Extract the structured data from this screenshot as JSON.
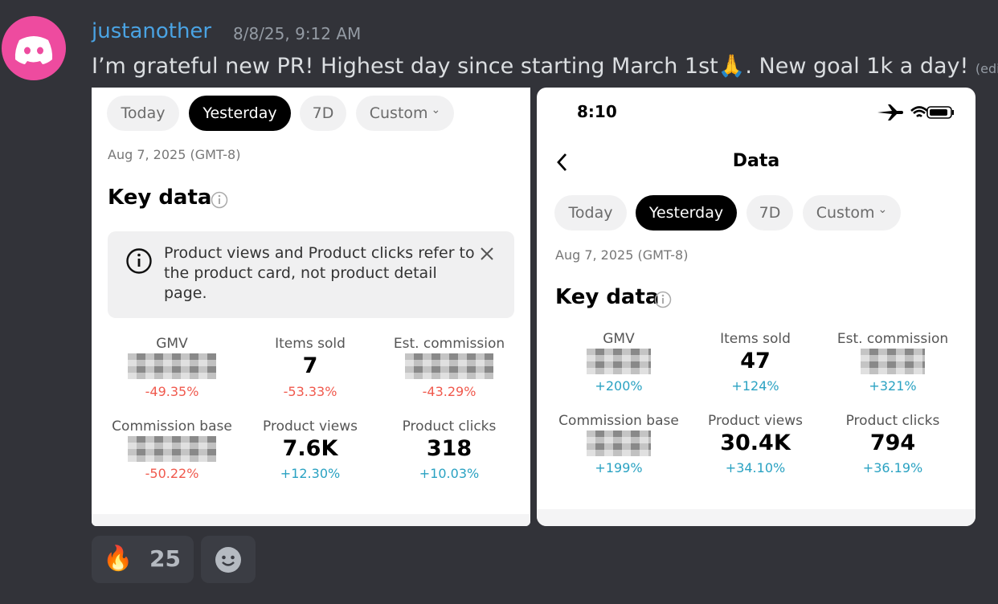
{
  "message": {
    "username": "justanother",
    "timestamp": "8/8/25, 9:12 AM",
    "text": "I’m grateful new PR! Highest day since starting March 1st🙏.  New goal 1k a day!",
    "edited": "(edited)"
  },
  "screenshots": [
    {
      "tabs": [
        "Today",
        "Yesterday",
        "7D",
        "Custom"
      ],
      "selected_tab": 1,
      "date": "Aug 7, 2025 (GMT-8)",
      "section_title": "Key data",
      "notice": "Product views and Product clicks refer to the product card, not product detail page.",
      "metrics": [
        {
          "label": "GMV",
          "change": "-49.35%"
        },
        {
          "label": "Items sold",
          "value": "7",
          "change": "-53.33%"
        },
        {
          "label": "Est. commission",
          "change": "-43.29%"
        },
        {
          "label": "Commission base",
          "change": "-50.22%"
        },
        {
          "label": "Product views",
          "value": "7.6K",
          "change": "+12.30%"
        },
        {
          "label": "Product clicks",
          "value": "318",
          "change": "+10.03%"
        }
      ]
    },
    {
      "status_time": "8:10",
      "header_title": "Data",
      "tabs": [
        "Today",
        "Yesterday",
        "7D",
        "Custom"
      ],
      "selected_tab": 1,
      "date": "Aug 7, 2025 (GMT-8)",
      "section_title": "Key data",
      "metrics": [
        {
          "label": "GMV",
          "change": "+200%"
        },
        {
          "label": "Items sold",
          "value": "47",
          "change": "+124%"
        },
        {
          "label": "Est. commission",
          "change": "+321%"
        },
        {
          "label": "Commission base",
          "change": "+199%"
        },
        {
          "label": "Product views",
          "value": "30.4K",
          "change": "+34.10%"
        },
        {
          "label": "Product clicks",
          "value": "794",
          "change": "+36.19%"
        }
      ]
    }
  ],
  "reactions": [
    {
      "emoji": "🔥",
      "count": 25
    }
  ]
}
